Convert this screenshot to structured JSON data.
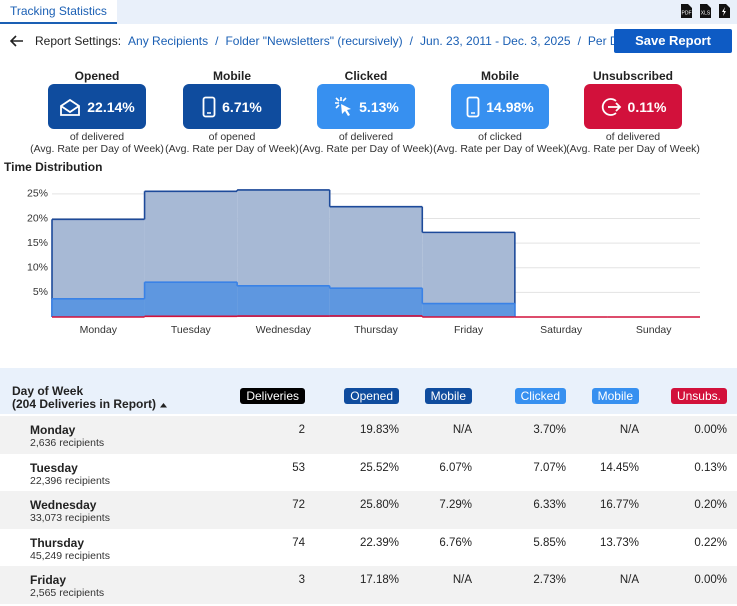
{
  "header": {
    "tab": "Tracking Statistics"
  },
  "settings": {
    "label": "Report Settings:",
    "filters": [
      "Any Recipients",
      "Folder \"Newsletters\" (recursively)",
      "Jun. 23, 2011 - Dec. 3, 2025",
      "Per Day of Week"
    ],
    "separator": "/",
    "button": "Save Report"
  },
  "cards": [
    {
      "title": "Opened",
      "value": "22.14%",
      "basis": "of delivered",
      "note": "(Avg. Rate per Day of Week)",
      "color": "#0f4c9e"
    },
    {
      "title": "Mobile",
      "value": "6.71%",
      "basis": "of opened",
      "note": "(Avg. Rate per Day of Week)",
      "color": "#0f4c9e"
    },
    {
      "title": "Clicked",
      "value": "5.13%",
      "basis": "of delivered",
      "note": "(Avg. Rate per Day of Week)",
      "color": "#3790f0"
    },
    {
      "title": "Mobile",
      "value": "14.98%",
      "basis": "of clicked",
      "note": "(Avg. Rate per Day of Week)",
      "color": "#3790f0"
    },
    {
      "title": "Unsubscribed",
      "value": "0.11%",
      "basis": "of delivered",
      "note": "(Avg. Rate per Day of Week)",
      "color": "#d2113b"
    }
  ],
  "chart_data": {
    "type": "step-area",
    "title": "Time Distribution",
    "categories": [
      "Monday",
      "Tuesday",
      "Wednesday",
      "Thursday",
      "Friday",
      "Saturday",
      "Sunday"
    ],
    "series": [
      {
        "color": "#1d4a9a",
        "fill": "#a7b9d5",
        "values": [
          19.83,
          25.52,
          25.8,
          22.39,
          17.18,
          null,
          null
        ]
      },
      {
        "color": "#3a82e6",
        "fill": "#5e97e0",
        "values": [
          3.7,
          7.07,
          6.33,
          5.85,
          2.73,
          null,
          null
        ]
      },
      {
        "color": "#d2113b",
        "fill": "none",
        "values": [
          0,
          0.13,
          0.2,
          0.22,
          0,
          0,
          0
        ]
      }
    ],
    "ylim": [
      0,
      27
    ],
    "yticks": [
      {
        "value": 5,
        "label": "5%"
      },
      {
        "value": 10,
        "label": "10%"
      },
      {
        "value": 15,
        "label": "15%"
      },
      {
        "value": 20,
        "label": "20%"
      },
      {
        "value": 25,
        "label": "25%"
      }
    ],
    "grid": true
  },
  "table": {
    "header": {
      "title": "Day of Week",
      "subtitle": "(204 Deliveries in Report)"
    },
    "columns": [
      {
        "label": "Deliveries",
        "color": "#000000"
      },
      {
        "label": "Opened",
        "color": "#0f4c9e"
      },
      {
        "label": "Mobile",
        "color": "#0f4c9e"
      },
      {
        "label": "Clicked",
        "color": "#3790f0"
      },
      {
        "label": "Mobile",
        "color": "#3790f0"
      },
      {
        "label": "Unsubs.",
        "color": "#d2113b"
      }
    ],
    "rows": [
      {
        "day": "Monday",
        "recipients": "2,636 recipients",
        "cells": [
          "2",
          "19.83%",
          "N/A",
          "3.70%",
          "N/A",
          "0.00%"
        ]
      },
      {
        "day": "Tuesday",
        "recipients": "22,396 recipients",
        "cells": [
          "53",
          "25.52%",
          "6.07%",
          "7.07%",
          "14.45%",
          "0.13%"
        ]
      },
      {
        "day": "Wednesday",
        "recipients": "33,073 recipients",
        "cells": [
          "72",
          "25.80%",
          "7.29%",
          "6.33%",
          "16.77%",
          "0.20%"
        ]
      },
      {
        "day": "Thursday",
        "recipients": "45,249 recipients",
        "cells": [
          "74",
          "22.39%",
          "6.76%",
          "5.85%",
          "13.73%",
          "0.22%"
        ]
      },
      {
        "day": "Friday",
        "recipients": "2,565 recipients",
        "cells": [
          "3",
          "17.18%",
          "N/A",
          "2.73%",
          "N/A",
          "0.00%"
        ]
      }
    ]
  }
}
